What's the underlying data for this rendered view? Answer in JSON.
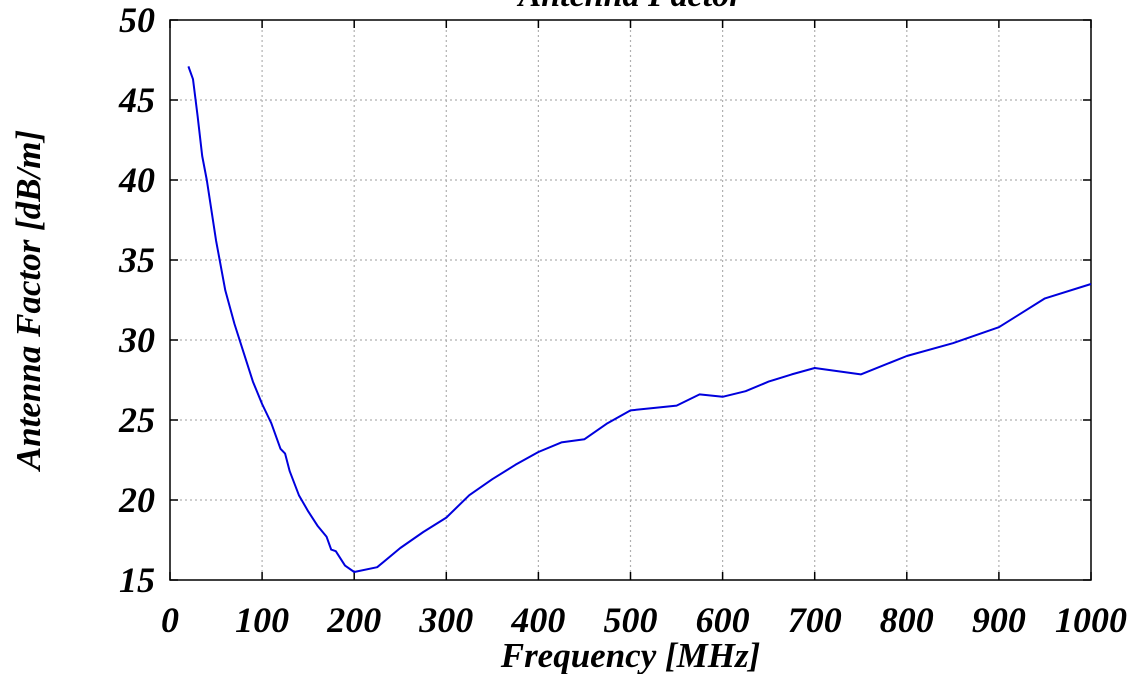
{
  "chart_data": {
    "type": "line",
    "title": "Antenna Factor",
    "xlabel": "Frequency [MHz]",
    "ylabel": "Antenna Factor [dB/m]",
    "xlim": [
      0,
      1000
    ],
    "ylim": [
      15,
      50
    ],
    "x_ticks": [
      0,
      100,
      200,
      300,
      400,
      500,
      600,
      700,
      800,
      900,
      1000
    ],
    "y_ticks": [
      15,
      20,
      25,
      30,
      35,
      40,
      45,
      50
    ],
    "grid": true,
    "line_color": "#0000dd",
    "series": [
      {
        "x": [
          20,
          25,
          30,
          35,
          40,
          50,
          60,
          70,
          80,
          90,
          100,
          110,
          120,
          125,
          130,
          140,
          150,
          160,
          170,
          175,
          180,
          190,
          200,
          225,
          250,
          275,
          300,
          325,
          350,
          375,
          400,
          425,
          450,
          475,
          500,
          525,
          550,
          575,
          600,
          625,
          650,
          675,
          700,
          750,
          800,
          850,
          900,
          950,
          1000
        ],
        "y": [
          47.1,
          46.3,
          44.0,
          41.5,
          40.0,
          36.2,
          33.1,
          31.0,
          29.2,
          27.4,
          26.0,
          24.8,
          23.2,
          22.9,
          21.8,
          20.3,
          19.3,
          18.4,
          17.7,
          16.9,
          16.8,
          15.9,
          15.5,
          15.8,
          17.0,
          18.0,
          18.9,
          20.3,
          21.3,
          22.2,
          23.0,
          23.6,
          23.8,
          24.8,
          25.6,
          25.75,
          25.9,
          26.6,
          26.45,
          26.8,
          27.4,
          27.85,
          28.25,
          27.85,
          29.0,
          29.8,
          30.8,
          32.6,
          33.5
        ]
      }
    ]
  }
}
